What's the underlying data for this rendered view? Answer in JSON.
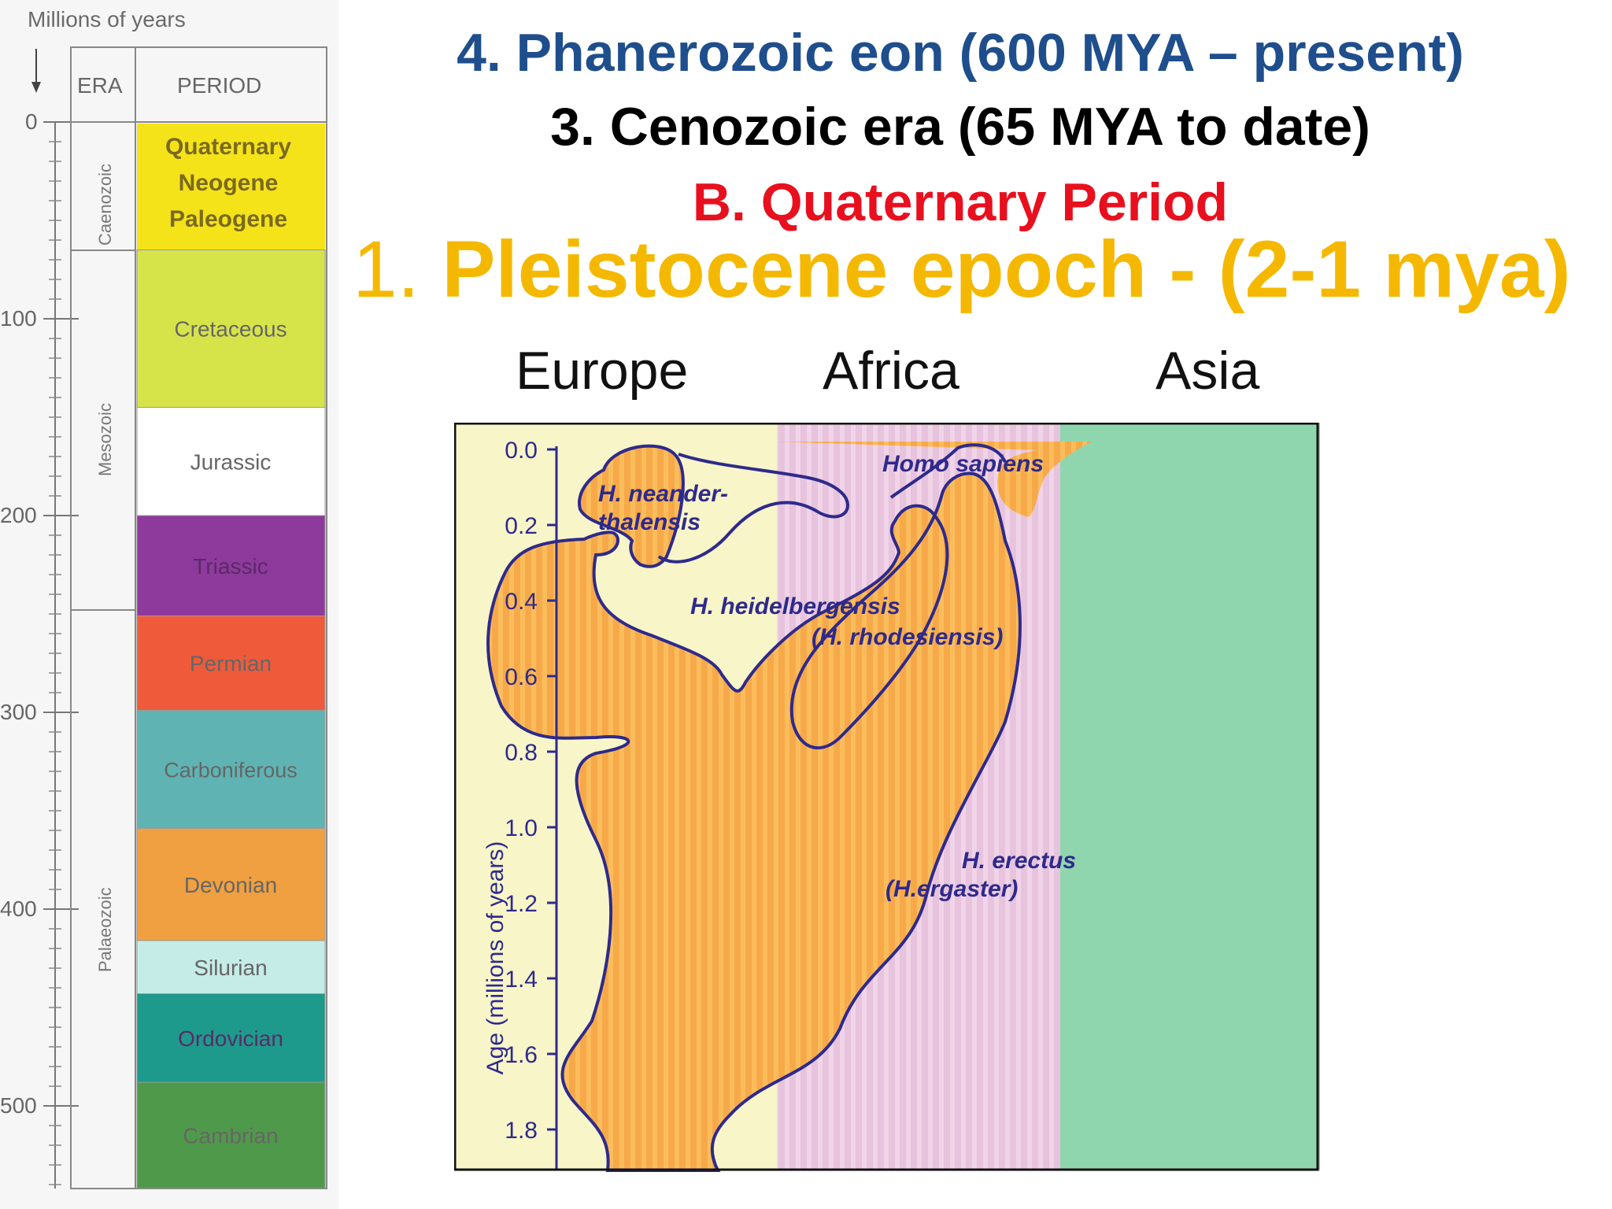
{
  "slide": {
    "eon_heading": "4. Phanerozoic eon (600 MYA – present)",
    "era_heading": "3. Cenozoic era (65 MYA to date)",
    "period_heading": "B. Quaternary Period",
    "epoch_number": "1.",
    "epoch_heading": "Pleistocene epoch - (2-1 mya)",
    "regions": [
      "Europe",
      "Africa",
      "Asia"
    ]
  },
  "timescale": {
    "caption": "Millions of years",
    "header_era": "ERA",
    "header_period": "PERIOD",
    "axis_ticks": [
      "0",
      "100",
      "200",
      "300",
      "400",
      "500"
    ],
    "eras": [
      "Caenozoic",
      "Mesozoic",
      "Palaeozoic"
    ],
    "cenozoic_periods": [
      "Quaternary",
      "Neogene",
      "Paleogene"
    ],
    "periods": [
      {
        "name": "Cretaceous",
        "color": "#d6e44a"
      },
      {
        "name": "Jurassic",
        "color": "#ffffff"
      },
      {
        "name": "Triassic",
        "color": "#8e3a9c"
      },
      {
        "name": "Permian",
        "color": "#ef5b3a"
      },
      {
        "name": "Carboniferous",
        "color": "#5fb3b3"
      },
      {
        "name": "Devonian",
        "color": "#f0a040"
      },
      {
        "name": "Silurian",
        "color": "#c6ece8"
      },
      {
        "name": "Ordovician",
        "color": "#1d9a8c"
      },
      {
        "name": "Cambrian",
        "color": "#4f9a4a"
      }
    ],
    "cenozoic_color": "#f5e31a"
  },
  "chart": {
    "ylabel": "Age (millions of years)",
    "yticks": [
      "0.0",
      "0.2",
      "0.4",
      "0.6",
      "0.8",
      "1.0",
      "1.2",
      "1.4",
      "1.6",
      "1.8"
    ],
    "species": {
      "neanderthalensis_1": "H. neander-",
      "neanderthalensis_2": "thalensis",
      "sapiens": "Homo sapiens",
      "heidelbergensis_1": "H. heidelbergensis",
      "heidelbergensis_2": "(H. rhodesiensis)",
      "erectus_1": "H. erectus",
      "erectus_2": "(H.ergaster)"
    },
    "colors": {
      "europe_bg": "#f8f5c8",
      "africa_bg": "#e8c2dc",
      "asia_bg": "#8fd6ae",
      "species_fill": "#f7a94a",
      "outline": "#2e2a8c"
    }
  }
}
